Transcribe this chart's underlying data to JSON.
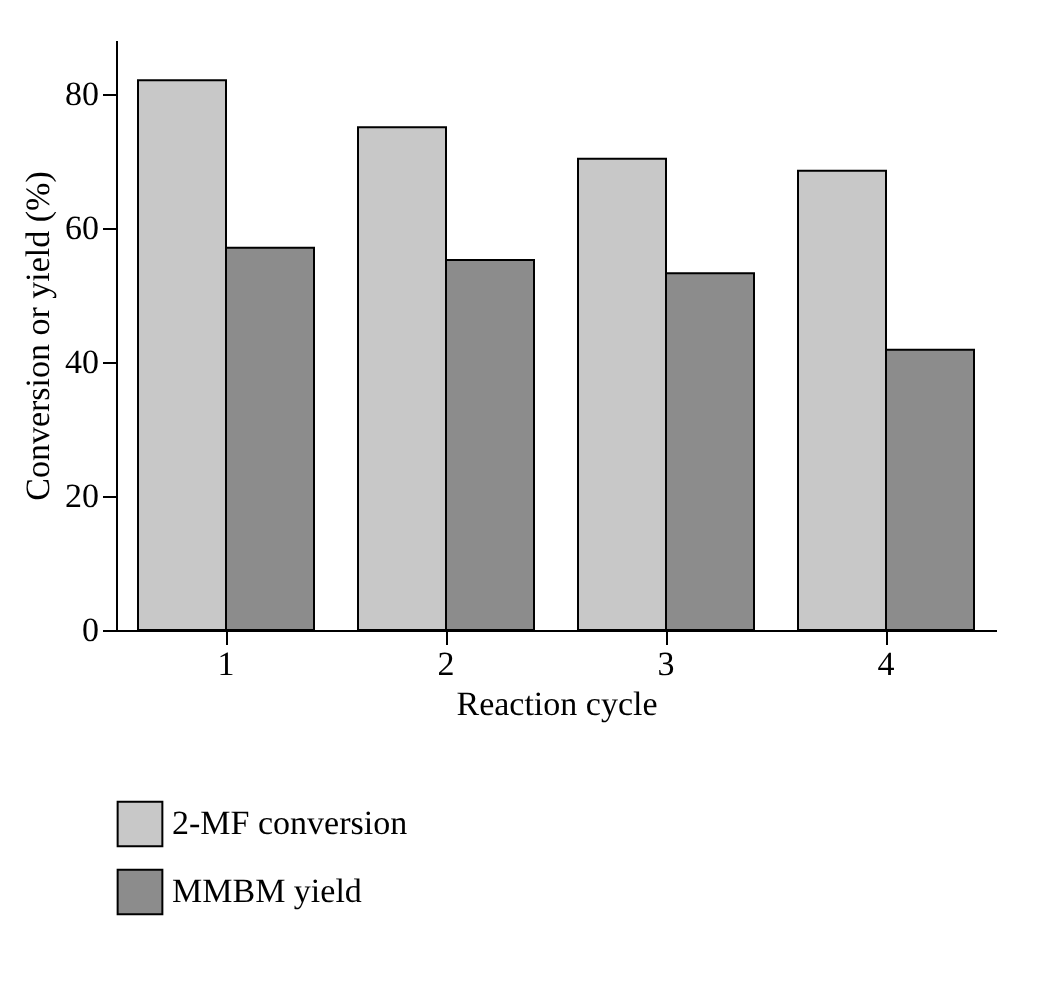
{
  "chart_data": {
    "type": "bar",
    "xlabel": "Reaction cycle",
    "ylabel": "Conversion or yield (%)",
    "categories": [
      "1",
      "2",
      "3",
      "4"
    ],
    "series": [
      {
        "name": "2-MF conversion",
        "color": "#c8c8c8",
        "values": [
          82,
          75,
          70.3,
          68.5
        ]
      },
      {
        "name": "MMBM yield",
        "color": "#8c8c8c",
        "values": [
          57,
          55.2,
          53.2,
          41.8
        ]
      }
    ],
    "ylim": [
      0,
      88
    ],
    "yticks": [
      0,
      20,
      40,
      60,
      80
    ],
    "grid": false,
    "legend": "bottom left"
  }
}
